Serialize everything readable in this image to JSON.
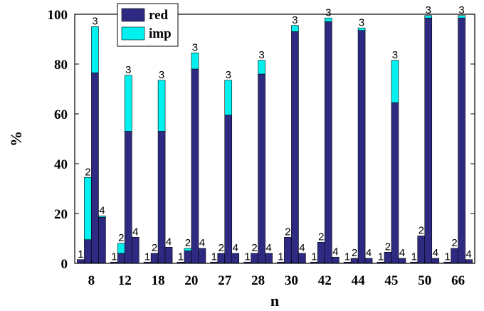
{
  "chart_data": {
    "type": "bar",
    "stacked_grouped": true,
    "xlabel": "n",
    "ylabel": "%",
    "ylim": [
      0,
      100
    ],
    "yticks": [
      0,
      20,
      40,
      60,
      80,
      100
    ],
    "categories": [
      "8",
      "12",
      "18",
      "20",
      "27",
      "28",
      "30",
      "42",
      "44",
      "45",
      "50",
      "66"
    ],
    "group_labels": [
      "1",
      "2",
      "3",
      "4"
    ],
    "series": [
      {
        "name": "red",
        "color": "#2e2a82",
        "groups": [
          [
            1.5,
            9.5,
            76.5,
            18.5
          ],
          [
            0.5,
            4,
            53,
            10.5
          ],
          [
            0.5,
            4,
            53,
            6.5
          ],
          [
            0.5,
            5,
            78,
            6
          ],
          [
            0.5,
            4,
            59.5,
            4
          ],
          [
            0.5,
            4,
            76,
            4
          ],
          [
            0.5,
            10.5,
            93,
            4
          ],
          [
            0.5,
            8.5,
            97,
            2.5
          ],
          [
            0.5,
            2,
            93.5,
            2
          ],
          [
            0.5,
            4.5,
            64.5,
            2
          ],
          [
            0.5,
            11,
            98.5,
            2
          ],
          [
            0.5,
            6,
            98.5,
            1.5
          ]
        ]
      },
      {
        "name": "imp",
        "color": "#00f0f0",
        "groups": [
          [
            0,
            25,
            18.5,
            0.5
          ],
          [
            0,
            4,
            22.5,
            0
          ],
          [
            0,
            0,
            20.5,
            0
          ],
          [
            0,
            1,
            6.5,
            0
          ],
          [
            0,
            0,
            14,
            0
          ],
          [
            0,
            0,
            5.5,
            0
          ],
          [
            0,
            0,
            2.5,
            0
          ],
          [
            0,
            0,
            1.5,
            0
          ],
          [
            0,
            0,
            1,
            0
          ],
          [
            0,
            0,
            17,
            0
          ],
          [
            0,
            0,
            1,
            0
          ],
          [
            0,
            0,
            1,
            0
          ]
        ]
      }
    ],
    "legend": {
      "position": "top-left",
      "entries": [
        "red",
        "imp"
      ]
    },
    "grid": false
  }
}
